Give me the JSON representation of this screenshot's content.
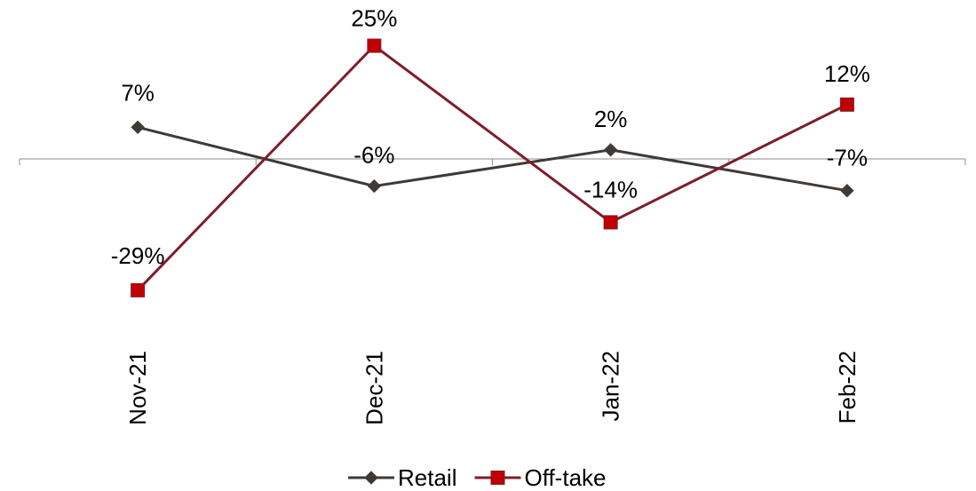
{
  "chart_data": {
    "type": "line",
    "categories": [
      "Nov-21",
      "Dec-21",
      "Jan-22",
      "Feb-22"
    ],
    "series": [
      {
        "name": "Retail",
        "values": [
          7,
          -6,
          2,
          -7
        ],
        "labels": [
          "7%",
          "-6%",
          "2%",
          "-7%"
        ],
        "color": "#403a35",
        "marker": "diamond"
      },
      {
        "name": "Off-take",
        "values": [
          -29,
          25,
          -14,
          12
        ],
        "labels": [
          "-29%",
          "25%",
          "-14%",
          "12%"
        ],
        "color": "#7f1d2b",
        "marker_color": "#c00000",
        "marker": "square"
      }
    ],
    "unit": "%",
    "ylim": [
      -35,
      30
    ],
    "grid": false,
    "legend_position": "bottom"
  }
}
